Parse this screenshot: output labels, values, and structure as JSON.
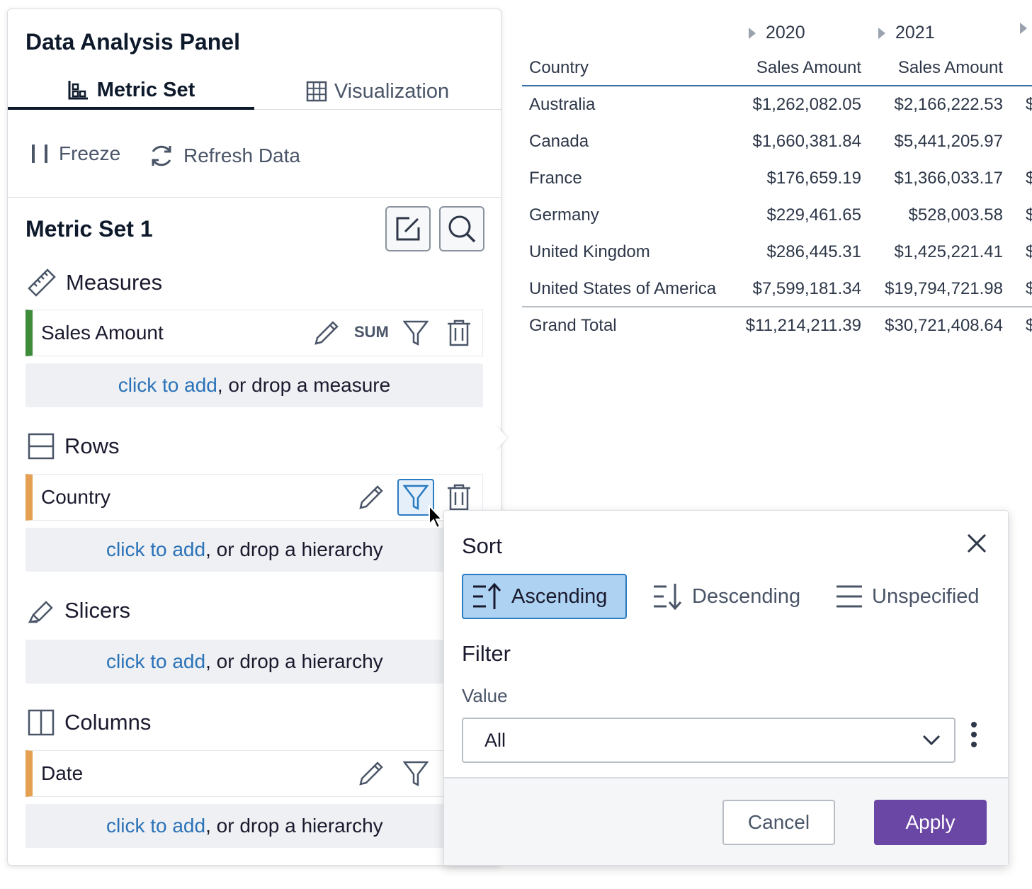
{
  "panel": {
    "title": "Data Analysis Panel",
    "tabs": [
      {
        "label": "Metric Set",
        "active": true,
        "icon": "metric-set-icon"
      },
      {
        "label": "Visualization",
        "active": false,
        "icon": "grid-icon"
      }
    ],
    "toolbar": {
      "freeze_label": "Freeze",
      "refresh_label": "Refresh Data"
    },
    "metric_set_title": "Metric Set 1",
    "sections": {
      "measures": {
        "label": "Measures",
        "field": "Sales Amount",
        "aggregation": "SUM",
        "drop_link": "click to add",
        "drop_rest": ", or drop a measure"
      },
      "rows": {
        "label": "Rows",
        "field": "Country",
        "drop_link": "click to add",
        "drop_rest": ", or drop a hierarchy"
      },
      "slicers": {
        "label": "Slicers",
        "drop_link": "click to add",
        "drop_rest": ", or drop a hierarchy"
      },
      "columns": {
        "label": "Columns",
        "field": "Date",
        "drop_link": "click to add",
        "drop_rest": ", or drop a hierarchy"
      }
    },
    "colors": {
      "measure_accent": "#3e8b3a",
      "hierarchy_accent": "#e5a054",
      "link": "#2a72b8"
    }
  },
  "table": {
    "years": [
      "2020",
      "2021"
    ],
    "headers": {
      "country": "Country",
      "col_2020": "Sales Amount",
      "col_2021": "Sales Amount"
    },
    "rows": [
      {
        "name": "Australia",
        "v2020": "$1,262,082.05",
        "v2021": "$2,166,222.53",
        "cut": "$"
      },
      {
        "name": "Canada",
        "v2020": "$1,660,381.84",
        "v2021": "$5,441,205.97",
        "cut": ""
      },
      {
        "name": "France",
        "v2020": "$176,659.19",
        "v2021": "$1,366,033.17",
        "cut": "$"
      },
      {
        "name": "Germany",
        "v2020": "$229,461.65",
        "v2021": "$528,003.58",
        "cut": "$"
      },
      {
        "name": "United Kingdom",
        "v2020": "$286,445.31",
        "v2021": "$1,425,221.41",
        "cut": "$"
      },
      {
        "name": "United States of America",
        "v2020": "$7,599,181.34",
        "v2021": "$19,794,721.98",
        "cut": "$"
      }
    ],
    "total": {
      "name": "Grand Total",
      "v2020": "$11,214,211.39",
      "v2021": "$30,721,408.64",
      "cut": "$"
    }
  },
  "popup": {
    "sort_title": "Sort",
    "sort_options": [
      {
        "label": "Ascending",
        "active": true
      },
      {
        "label": "Descending",
        "active": false
      },
      {
        "label": "Unspecified",
        "active": false
      }
    ],
    "filter_title": "Filter",
    "value_label": "Value",
    "value_selected": "All",
    "cancel_label": "Cancel",
    "apply_label": "Apply",
    "colors": {
      "apply": "#6a46a5",
      "active_sort_bg": "#aed2f1",
      "active_sort_border": "#2a7bc0"
    }
  }
}
